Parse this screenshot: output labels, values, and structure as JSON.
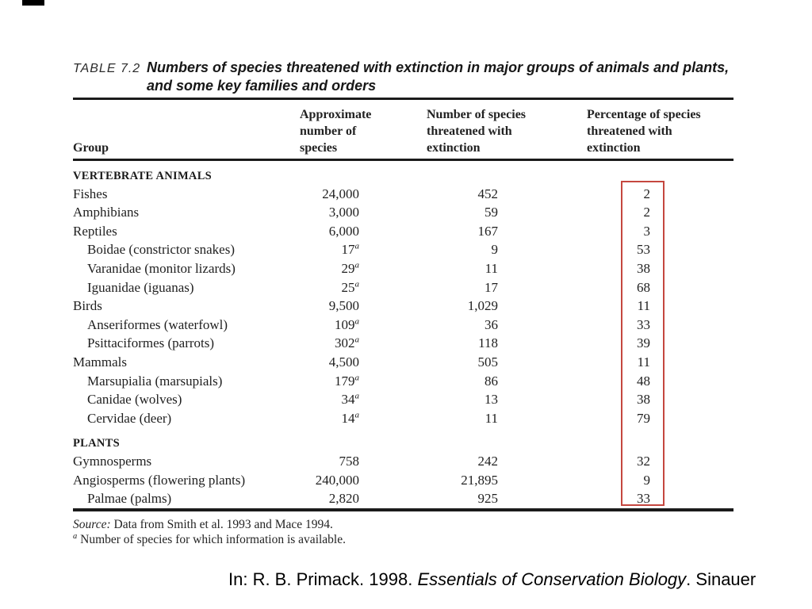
{
  "table": {
    "label": "TABLE 7.2",
    "title_line1": "Numbers of species threatened with extinction in major groups of animals and plants,",
    "title_line2": "and some key families and orders",
    "headers": {
      "group": "Group",
      "col2_lines": [
        "Approximate",
        "number of",
        "species"
      ],
      "col3_lines": [
        "Number of species",
        "threatened with",
        "extinction"
      ],
      "col4_lines": [
        "Percentage of species",
        "threatened with",
        "extinction"
      ]
    },
    "rows": [
      {
        "type": "section",
        "name": "VERTEBRATE ANIMALS"
      },
      {
        "type": "row",
        "name": "Fishes",
        "approx": "24,000",
        "threatened": "452",
        "percent": "2"
      },
      {
        "type": "row",
        "name": "Amphibians",
        "approx": "3,000",
        "threatened": "59",
        "percent": "2"
      },
      {
        "type": "row",
        "name": "Reptiles",
        "approx": "6,000",
        "threatened": "167",
        "percent": "3"
      },
      {
        "type": "sub",
        "name": "Boidae (constrictor snakes)",
        "approx": "17",
        "sup": "a",
        "threatened": "9",
        "percent": "53"
      },
      {
        "type": "sub",
        "name": "Varanidae (monitor lizards)",
        "approx": "29",
        "sup": "a",
        "threatened": "11",
        "percent": "38"
      },
      {
        "type": "sub",
        "name": "Iguanidae (iguanas)",
        "approx": "25",
        "sup": "a",
        "threatened": "17",
        "percent": "68"
      },
      {
        "type": "row",
        "name": "Birds",
        "approx": "9,500",
        "threatened": "1,029",
        "percent": "11"
      },
      {
        "type": "sub",
        "name": "Anseriformes (waterfowl)",
        "approx": "109",
        "sup": "a",
        "threatened": "36",
        "percent": "33"
      },
      {
        "type": "sub",
        "name": "Psittaciformes (parrots)",
        "approx": "302",
        "sup": "a",
        "threatened": "118",
        "percent": "39"
      },
      {
        "type": "row",
        "name": "Mammals",
        "approx": "4,500",
        "threatened": "505",
        "percent": "11"
      },
      {
        "type": "sub",
        "name": "Marsupialia (marsupials)",
        "approx": "179",
        "sup": "a",
        "threatened": "86",
        "percent": "48"
      },
      {
        "type": "sub",
        "name": "Canidae (wolves)",
        "approx": "34",
        "sup": "a",
        "threatened": "13",
        "percent": "38"
      },
      {
        "type": "sub",
        "name": "Cervidae (deer)",
        "approx": "14",
        "sup": "a",
        "threatened": "11",
        "percent": "79"
      },
      {
        "type": "section",
        "name": "PLANTS",
        "gap": true
      },
      {
        "type": "row",
        "name": "Gymnosperms",
        "approx": "758",
        "threatened": "242",
        "percent": "32"
      },
      {
        "type": "row",
        "name": "Angiosperms (flowering plants)",
        "approx": "240,000",
        "threatened": "21,895",
        "percent": "9"
      },
      {
        "type": "sub",
        "name": "Palmae (palms)",
        "approx": "2,820",
        "threatened": "925",
        "percent": "33"
      }
    ],
    "source_label": "Source:",
    "source_text": " Data from Smith et al. 1993 and Mace 1994.",
    "footnote_marker": "a",
    "footnote_text": " Number of species for which information is available.",
    "highlight_color": "#c5473f"
  },
  "caption": {
    "prefix": "In: R. B. Primack. 1998. ",
    "italic": "Essentials of Conservation Biology",
    "suffix": ". Sinauer"
  }
}
